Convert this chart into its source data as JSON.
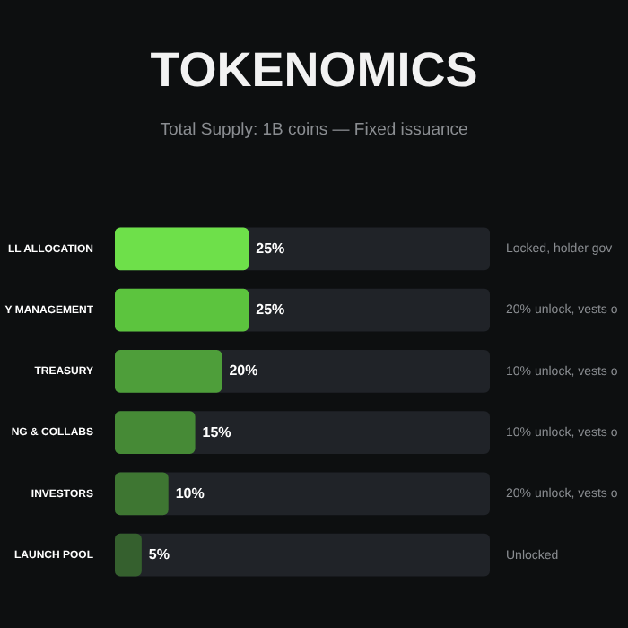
{
  "chart_data": {
    "type": "bar",
    "orientation": "horizontal",
    "title": "TOKENOMICS",
    "subtitle": "Total Supply: 1B coins — Fixed issuance",
    "categories": [
      "LL ALLOCATION",
      "Y MANAGEMENT",
      "TREASURY",
      "NG & COLLABS",
      "INVESTORS",
      "LAUNCH POOL"
    ],
    "values": [
      25,
      25,
      20,
      15,
      10,
      5
    ],
    "colors": [
      "#6ee04a",
      "#5cc43e",
      "#4e9e3a",
      "#468a36",
      "#3e7632",
      "#35602e"
    ],
    "value_labels": [
      "25%",
      "25%",
      "20%",
      "15%",
      "10%",
      "5%"
    ],
    "xlim": [
      0,
      70
    ],
    "legend": false,
    "tick_labels": "y",
    "annotations": [
      "Locked, holder gov",
      "20% unlock, vests o",
      "10% unlock, vests o",
      "10% unlock, vests o",
      "20% unlock, vests o",
      "Unlocked"
    ]
  }
}
